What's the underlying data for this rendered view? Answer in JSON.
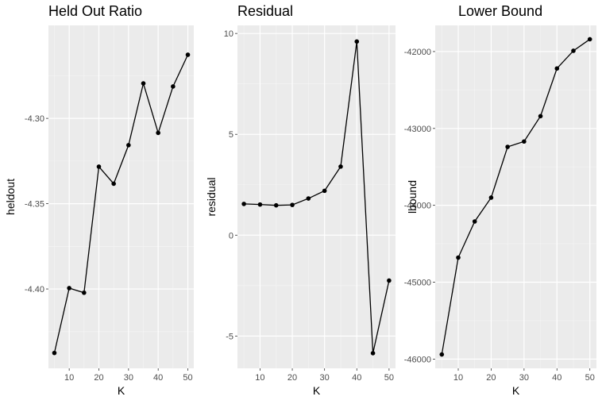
{
  "chart_data": [
    {
      "type": "line",
      "title": "Held Out Ratio",
      "xlabel": "K",
      "ylabel": "heldout",
      "x": [
        5,
        10,
        15,
        20,
        25,
        30,
        35,
        40,
        45,
        50
      ],
      "series": [
        {
          "values": [
            -4.4375,
            -4.3995,
            -4.4022,
            -4.3283,
            -4.3383,
            -4.3157,
            -4.2795,
            -4.3085,
            -4.2813,
            -4.2627
          ]
        }
      ],
      "xlim": [
        3,
        52
      ],
      "ylim": [
        -4.4465,
        -4.2455
      ],
      "xticks": [
        10,
        20,
        30,
        40,
        50
      ],
      "xtick_labels": [
        "10",
        "20",
        "30",
        "40",
        "50"
      ],
      "yticks": [
        -4.4,
        -4.35,
        -4.3
      ],
      "ytick_labels": [
        "-4.40",
        "-4.35",
        "-4.30"
      ],
      "grid": true
    },
    {
      "type": "line",
      "title": "Residual",
      "xlabel": "K",
      "ylabel": "residual",
      "x": [
        5,
        10,
        15,
        20,
        25,
        30,
        35,
        40,
        45,
        50
      ],
      "series": [
        {
          "values": [
            1.55,
            1.52,
            1.48,
            1.5,
            1.82,
            2.2,
            3.4,
            9.6,
            -5.85,
            -2.25
          ]
        }
      ],
      "xlim": [
        3,
        52
      ],
      "ylim": [
        -6.6,
        10.4
      ],
      "xticks": [
        10,
        20,
        30,
        40,
        50
      ],
      "xtick_labels": [
        "10",
        "20",
        "30",
        "40",
        "50"
      ],
      "yticks": [
        -5,
        0,
        5,
        10
      ],
      "ytick_labels": [
        "-5",
        "0",
        "5",
        "10"
      ],
      "grid": true
    },
    {
      "type": "line",
      "title": "Lower Bound",
      "xlabel": "K",
      "ylabel": "lbound",
      "x": [
        5,
        10,
        15,
        20,
        25,
        30,
        35,
        40,
        45,
        50
      ],
      "series": [
        {
          "values": [
            -45940,
            -44680,
            -44210,
            -43900,
            -43240,
            -43170,
            -42840,
            -42220,
            -41990,
            -41840
          ]
        }
      ],
      "xlim": [
        3,
        52
      ],
      "ylim": [
        -46120,
        -41660
      ],
      "xticks": [
        10,
        20,
        30,
        40,
        50
      ],
      "xtick_labels": [
        "10",
        "20",
        "30",
        "40",
        "50"
      ],
      "yticks": [
        -46000,
        -45000,
        -44000,
        -43000,
        -42000
      ],
      "ytick_labels": [
        "-46000",
        "-45000",
        "-44000",
        "-43000",
        "-42000"
      ],
      "grid": true
    }
  ],
  "colors": {
    "panel_background": "#ebebeb",
    "grid_major": "#ffffff",
    "line": "#000000",
    "point": "#000000",
    "tick_text": "#4d4d4d"
  }
}
